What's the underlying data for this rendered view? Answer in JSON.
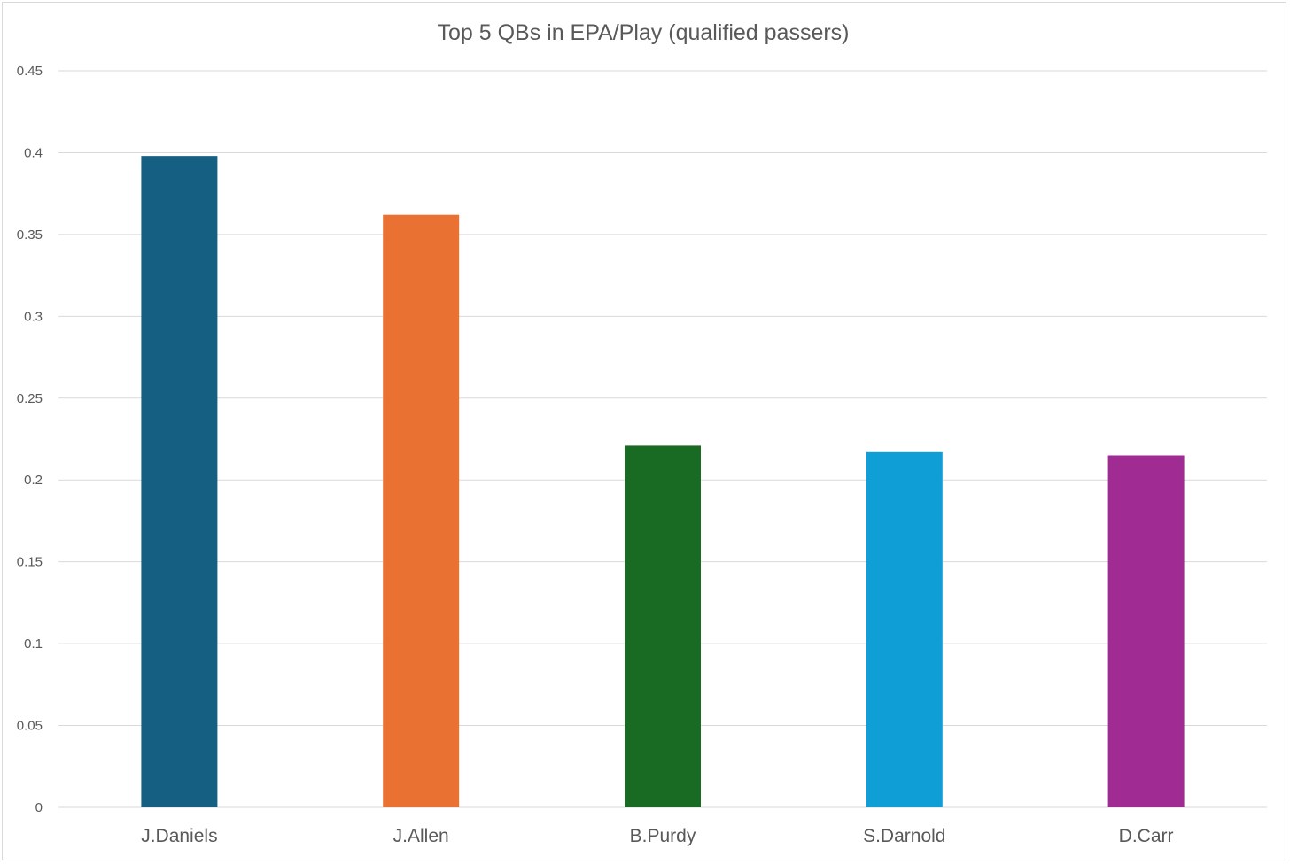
{
  "chart_data": {
    "type": "bar",
    "title": "Top 5 QBs in EPA/Play (qualified passers)",
    "xlabel": "",
    "ylabel": "",
    "categories": [
      "J.Daniels",
      "J.Allen",
      "B.Purdy",
      "S.Darnold",
      "D.Carr"
    ],
    "values": [
      0.398,
      0.362,
      0.221,
      0.217,
      0.215
    ],
    "colors": [
      "#156082",
      "#E97132",
      "#196B24",
      "#0F9ED5",
      "#A02B93"
    ],
    "ylim": [
      0,
      0.45
    ],
    "yticks": [
      "0",
      "0.05",
      "0.1",
      "0.15",
      "0.2",
      "0.25",
      "0.3",
      "0.35",
      "0.4",
      "0.45"
    ],
    "grid": true,
    "legend": "none"
  }
}
